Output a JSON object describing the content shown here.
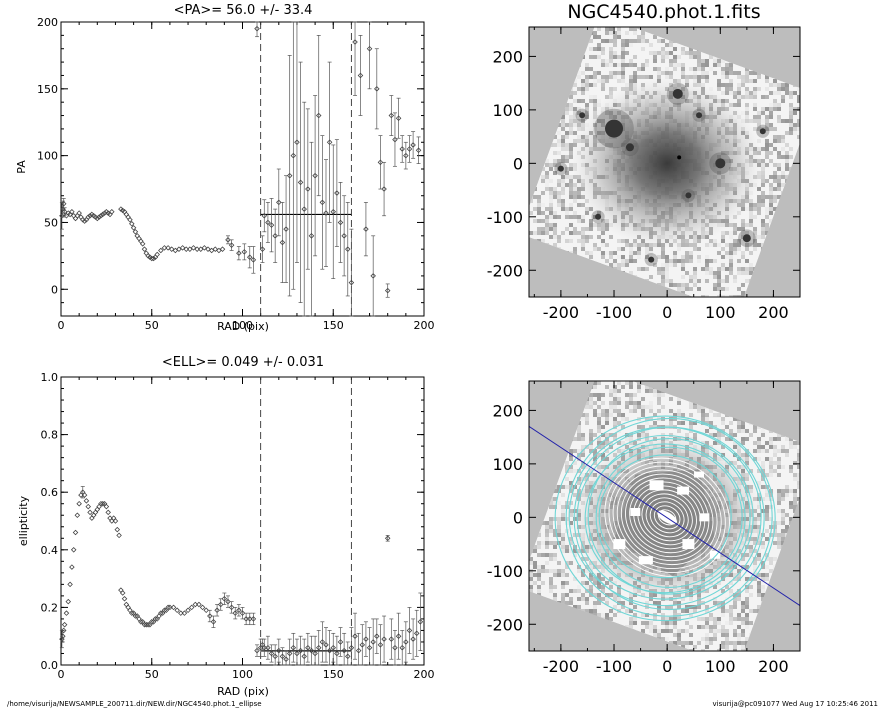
{
  "chart_data": [
    {
      "type": "scatter",
      "title": "<PA>=  56.0 +/-  33.4",
      "xlabel": "RAD (pix)",
      "ylabel": "PA",
      "xlim": [
        0,
        200
      ],
      "ylim": [
        -20,
        200
      ],
      "xticks": [
        "0",
        "50",
        "100",
        "150",
        "200"
      ],
      "yticks": [
        "0",
        "50",
        "100",
        "150",
        "200"
      ],
      "vlines": [
        110,
        160
      ],
      "mean_line": {
        "x": [
          110,
          160
        ],
        "y": 56.0
      },
      "points": [
        {
          "x": 0.5,
          "y": 55,
          "e": 10
        },
        {
          "x": 1,
          "y": 60,
          "e": 6
        },
        {
          "x": 1.5,
          "y": 64,
          "e": 4
        },
        {
          "x": 2,
          "y": 58,
          "e": 3
        },
        {
          "x": 3,
          "y": 55
        },
        {
          "x": 4,
          "y": 57
        },
        {
          "x": 5,
          "y": 56
        },
        {
          "x": 6,
          "y": 58
        },
        {
          "x": 7,
          "y": 55
        },
        {
          "x": 8,
          "y": 53
        },
        {
          "x": 9,
          "y": 55
        },
        {
          "x": 10,
          "y": 57
        },
        {
          "x": 11,
          "y": 54
        },
        {
          "x": 12,
          "y": 52
        },
        {
          "x": 13,
          "y": 51
        },
        {
          "x": 14,
          "y": 52
        },
        {
          "x": 15,
          "y": 54
        },
        {
          "x": 16,
          "y": 55
        },
        {
          "x": 17,
          "y": 56
        },
        {
          "x": 18,
          "y": 55
        },
        {
          "x": 19,
          "y": 54
        },
        {
          "x": 20,
          "y": 53
        },
        {
          "x": 21,
          "y": 54
        },
        {
          "x": 22,
          "y": 55
        },
        {
          "x": 23,
          "y": 56
        },
        {
          "x": 24,
          "y": 57
        },
        {
          "x": 25,
          "y": 58
        },
        {
          "x": 26,
          "y": 57
        },
        {
          "x": 27,
          "y": 56
        },
        {
          "x": 28,
          "y": 58
        },
        {
          "x": 33,
          "y": 60
        },
        {
          "x": 34,
          "y": 59
        },
        {
          "x": 35,
          "y": 58
        },
        {
          "x": 36,
          "y": 56
        },
        {
          "x": 37,
          "y": 54
        },
        {
          "x": 38,
          "y": 52
        },
        {
          "x": 39,
          "y": 49
        },
        {
          "x": 40,
          "y": 46
        },
        {
          "x": 41,
          "y": 43
        },
        {
          "x": 42,
          "y": 40
        },
        {
          "x": 43,
          "y": 38
        },
        {
          "x": 44,
          "y": 36
        },
        {
          "x": 45,
          "y": 34
        },
        {
          "x": 46,
          "y": 30
        },
        {
          "x": 47,
          "y": 27
        },
        {
          "x": 48,
          "y": 25
        },
        {
          "x": 49,
          "y": 24
        },
        {
          "x": 50,
          "y": 23
        },
        {
          "x": 51,
          "y": 23
        },
        {
          "x": 52,
          "y": 24
        },
        {
          "x": 53,
          "y": 26
        },
        {
          "x": 55,
          "y": 29
        },
        {
          "x": 57,
          "y": 31
        },
        {
          "x": 59,
          "y": 31
        },
        {
          "x": 61,
          "y": 30
        },
        {
          "x": 63,
          "y": 29
        },
        {
          "x": 65,
          "y": 30
        },
        {
          "x": 67,
          "y": 31
        },
        {
          "x": 69,
          "y": 30
        },
        {
          "x": 71,
          "y": 30
        },
        {
          "x": 73,
          "y": 31
        },
        {
          "x": 75,
          "y": 30
        },
        {
          "x": 77,
          "y": 30
        },
        {
          "x": 79,
          "y": 31
        },
        {
          "x": 81,
          "y": 30
        },
        {
          "x": 83,
          "y": 29
        },
        {
          "x": 85,
          "y": 30
        },
        {
          "x": 87,
          "y": 29
        },
        {
          "x": 89,
          "y": 30
        },
        {
          "x": 92,
          "y": 37,
          "e": 3
        },
        {
          "x": 94,
          "y": 33,
          "e": 4
        },
        {
          "x": 98,
          "y": 27,
          "e": 5
        },
        {
          "x": 101,
          "y": 28,
          "e": 6
        },
        {
          "x": 104,
          "y": 24,
          "e": 8
        },
        {
          "x": 106,
          "y": 22,
          "e": 10
        },
        {
          "x": 108,
          "y": 195,
          "e": 6
        },
        {
          "x": 111,
          "y": 30,
          "e": 10
        },
        {
          "x": 112,
          "y": 55,
          "e": 12
        },
        {
          "x": 114,
          "y": 50,
          "e": 15
        },
        {
          "x": 116,
          "y": 48,
          "e": 20
        },
        {
          "x": 118,
          "y": 40,
          "e": 20
        },
        {
          "x": 120,
          "y": 65,
          "e": 25
        },
        {
          "x": 122,
          "y": 35,
          "e": 30
        },
        {
          "x": 124,
          "y": 45,
          "e": 40
        },
        {
          "x": 126,
          "y": 85,
          "e": 90
        },
        {
          "x": 128,
          "y": 100,
          "e": 100
        },
        {
          "x": 130,
          "y": 110,
          "e": 90
        },
        {
          "x": 132,
          "y": 80,
          "e": 90
        },
        {
          "x": 134,
          "y": 60,
          "e": 80
        },
        {
          "x": 136,
          "y": 75,
          "e": 60
        },
        {
          "x": 138,
          "y": 40,
          "e": 70
        },
        {
          "x": 140,
          "y": 85,
          "e": 60
        },
        {
          "x": 142,
          "y": 130,
          "e": 60
        },
        {
          "x": 144,
          "y": 65,
          "e": 50
        },
        {
          "x": 146,
          "y": 57,
          "e": 40
        },
        {
          "x": 148,
          "y": 110,
          "e": 60
        },
        {
          "x": 150,
          "y": 58,
          "e": 50
        },
        {
          "x": 152,
          "y": 72,
          "e": 40
        },
        {
          "x": 154,
          "y": 50,
          "e": 30
        },
        {
          "x": 156,
          "y": 40,
          "e": 30
        },
        {
          "x": 158,
          "y": 30,
          "e": 35
        },
        {
          "x": 160,
          "y": 5,
          "e": 40
        },
        {
          "x": 162,
          "y": 185,
          "e": 40
        },
        {
          "x": 165,
          "y": 160,
          "e": 30
        },
        {
          "x": 168,
          "y": 45,
          "e": 20
        },
        {
          "x": 170,
          "y": 180,
          "e": 30
        },
        {
          "x": 172,
          "y": 10,
          "e": 30
        },
        {
          "x": 174,
          "y": 150,
          "e": 30
        },
        {
          "x": 176,
          "y": 95,
          "e": 20
        },
        {
          "x": 178,
          "y": 75,
          "e": 20
        },
        {
          "x": 180,
          "y": -1,
          "e": 5
        },
        {
          "x": 182,
          "y": 130,
          "e": 15
        },
        {
          "x": 184,
          "y": 112,
          "e": 20
        },
        {
          "x": 186,
          "y": 128,
          "e": 15
        },
        {
          "x": 188,
          "y": 105,
          "e": 10
        },
        {
          "x": 190,
          "y": 100,
          "e": 10
        },
        {
          "x": 192,
          "y": 105,
          "e": 10
        },
        {
          "x": 194,
          "y": 108,
          "e": 10
        },
        {
          "x": 197,
          "y": 104,
          "e": 10
        }
      ]
    },
    {
      "type": "scatter",
      "title": "<ELL>= 0.049 +/-  0.031",
      "xlabel": "RAD (pix)",
      "ylabel": "ellipticity",
      "xlim": [
        0,
        200
      ],
      "ylim": [
        0,
        1.0
      ],
      "xticks": [
        "0",
        "50",
        "100",
        "150",
        "200"
      ],
      "yticks": [
        "0.0",
        "0.2",
        "0.4",
        "0.6",
        "0.8",
        "1.0"
      ],
      "vlines": [
        110,
        160
      ],
      "mean_line": {
        "x": [
          110,
          160
        ],
        "y": 0.049
      },
      "points": [
        {
          "x": 0.5,
          "y": 0.09,
          "e": 0.03
        },
        {
          "x": 1,
          "y": 0.1,
          "e": 0.02
        },
        {
          "x": 1.5,
          "y": 0.12
        },
        {
          "x": 2,
          "y": 0.14
        },
        {
          "x": 3,
          "y": 0.18
        },
        {
          "x": 4,
          "y": 0.22
        },
        {
          "x": 5,
          "y": 0.28
        },
        {
          "x": 6,
          "y": 0.34
        },
        {
          "x": 7,
          "y": 0.4
        },
        {
          "x": 8,
          "y": 0.46
        },
        {
          "x": 9,
          "y": 0.52
        },
        {
          "x": 10,
          "y": 0.56
        },
        {
          "x": 11,
          "y": 0.59
        },
        {
          "x": 12,
          "y": 0.6,
          "e": 0.02
        },
        {
          "x": 13,
          "y": 0.59
        },
        {
          "x": 14,
          "y": 0.57
        },
        {
          "x": 15,
          "y": 0.55
        },
        {
          "x": 16,
          "y": 0.53
        },
        {
          "x": 17,
          "y": 0.51
        },
        {
          "x": 18,
          "y": 0.52
        },
        {
          "x": 19,
          "y": 0.53
        },
        {
          "x": 20,
          "y": 0.54
        },
        {
          "x": 21,
          "y": 0.55
        },
        {
          "x": 22,
          "y": 0.56
        },
        {
          "x": 23,
          "y": 0.56
        },
        {
          "x": 24,
          "y": 0.56
        },
        {
          "x": 25,
          "y": 0.55
        },
        {
          "x": 26,
          "y": 0.53
        },
        {
          "x": 27,
          "y": 0.51
        },
        {
          "x": 28,
          "y": 0.5
        },
        {
          "x": 29,
          "y": 0.51
        },
        {
          "x": 30,
          "y": 0.5
        },
        {
          "x": 31,
          "y": 0.47
        },
        {
          "x": 32,
          "y": 0.45
        },
        {
          "x": 33,
          "y": 0.26
        },
        {
          "x": 34,
          "y": 0.25
        },
        {
          "x": 35,
          "y": 0.23
        },
        {
          "x": 36,
          "y": 0.21
        },
        {
          "x": 37,
          "y": 0.2
        },
        {
          "x": 38,
          "y": 0.19
        },
        {
          "x": 39,
          "y": 0.18
        },
        {
          "x": 40,
          "y": 0.18
        },
        {
          "x": 41,
          "y": 0.17
        },
        {
          "x": 42,
          "y": 0.17
        },
        {
          "x": 43,
          "y": 0.16
        },
        {
          "x": 44,
          "y": 0.15
        },
        {
          "x": 45,
          "y": 0.15
        },
        {
          "x": 46,
          "y": 0.14
        },
        {
          "x": 47,
          "y": 0.14
        },
        {
          "x": 48,
          "y": 0.14
        },
        {
          "x": 49,
          "y": 0.14
        },
        {
          "x": 50,
          "y": 0.15
        },
        {
          "x": 51,
          "y": 0.15
        },
        {
          "x": 52,
          "y": 0.16
        },
        {
          "x": 53,
          "y": 0.16
        },
        {
          "x": 54,
          "y": 0.17
        },
        {
          "x": 55,
          "y": 0.18
        },
        {
          "x": 56,
          "y": 0.18
        },
        {
          "x": 57,
          "y": 0.19
        },
        {
          "x": 58,
          "y": 0.19
        },
        {
          "x": 59,
          "y": 0.2
        },
        {
          "x": 60,
          "y": 0.2
        },
        {
          "x": 62,
          "y": 0.2
        },
        {
          "x": 64,
          "y": 0.19
        },
        {
          "x": 66,
          "y": 0.18
        },
        {
          "x": 68,
          "y": 0.18
        },
        {
          "x": 70,
          "y": 0.19
        },
        {
          "x": 72,
          "y": 0.2
        },
        {
          "x": 74,
          "y": 0.21
        },
        {
          "x": 76,
          "y": 0.21
        },
        {
          "x": 78,
          "y": 0.2
        },
        {
          "x": 80,
          "y": 0.19
        },
        {
          "x": 82,
          "y": 0.17,
          "e": 0.02
        },
        {
          "x": 84,
          "y": 0.15,
          "e": 0.02
        },
        {
          "x": 86,
          "y": 0.19,
          "e": 0.02
        },
        {
          "x": 88,
          "y": 0.21,
          "e": 0.02
        },
        {
          "x": 90,
          "y": 0.23,
          "e": 0.02
        },
        {
          "x": 92,
          "y": 0.22,
          "e": 0.02
        },
        {
          "x": 94,
          "y": 0.2,
          "e": 0.02
        },
        {
          "x": 96,
          "y": 0.18,
          "e": 0.02
        },
        {
          "x": 98,
          "y": 0.19,
          "e": 0.02
        },
        {
          "x": 100,
          "y": 0.18,
          "e": 0.02
        },
        {
          "x": 102,
          "y": 0.16,
          "e": 0.02
        },
        {
          "x": 104,
          "y": 0.16,
          "e": 0.02
        },
        {
          "x": 106,
          "y": 0.16,
          "e": 0.02
        },
        {
          "x": 108,
          "y": 0.05,
          "e": 0.02
        },
        {
          "x": 110,
          "y": 0.06,
          "e": 0.03
        },
        {
          "x": 111,
          "y": 0.07,
          "e": 0.02
        },
        {
          "x": 112,
          "y": 0.06,
          "e": 0.03
        },
        {
          "x": 114,
          "y": 0.06,
          "e": 0.04
        },
        {
          "x": 116,
          "y": 0.04,
          "e": 0.03
        },
        {
          "x": 118,
          "y": 0.03,
          "e": 0.04
        },
        {
          "x": 120,
          "y": 0.05,
          "e": 0.04
        },
        {
          "x": 122,
          "y": 0.03,
          "e": 0.03
        },
        {
          "x": 124,
          "y": 0.02,
          "e": 0.03
        },
        {
          "x": 126,
          "y": 0.04,
          "e": 0.05
        },
        {
          "x": 128,
          "y": 0.06,
          "e": 0.05
        },
        {
          "x": 130,
          "y": 0.04,
          "e": 0.05
        },
        {
          "x": 132,
          "y": 0.05,
          "e": 0.05
        },
        {
          "x": 134,
          "y": 0.03,
          "e": 0.06
        },
        {
          "x": 136,
          "y": 0.06,
          "e": 0.05
        },
        {
          "x": 138,
          "y": 0.05,
          "e": 0.05
        },
        {
          "x": 140,
          "y": 0.04,
          "e": 0.06
        },
        {
          "x": 142,
          "y": 0.06,
          "e": 0.06
        },
        {
          "x": 144,
          "y": 0.08,
          "e": 0.07
        },
        {
          "x": 146,
          "y": 0.07,
          "e": 0.06
        },
        {
          "x": 148,
          "y": 0.05,
          "e": 0.07
        },
        {
          "x": 150,
          "y": 0.06,
          "e": 0.05
        },
        {
          "x": 152,
          "y": 0.04,
          "e": 0.06
        },
        {
          "x": 154,
          "y": 0.08,
          "e": 0.05
        },
        {
          "x": 156,
          "y": 0.05,
          "e": 0.06
        },
        {
          "x": 158,
          "y": 0.03,
          "e": 0.05
        },
        {
          "x": 160,
          "y": 0.06,
          "e": 0.07
        },
        {
          "x": 162,
          "y": 0.1,
          "e": 0.08
        },
        {
          "x": 164,
          "y": 0.05,
          "e": 0.06
        },
        {
          "x": 166,
          "y": 0.07,
          "e": 0.07
        },
        {
          "x": 168,
          "y": 0.09,
          "e": 0.06
        },
        {
          "x": 170,
          "y": 0.06,
          "e": 0.07
        },
        {
          "x": 172,
          "y": 0.08,
          "e": 0.08
        },
        {
          "x": 174,
          "y": 0.1,
          "e": 0.06
        },
        {
          "x": 176,
          "y": 0.07,
          "e": 0.07
        },
        {
          "x": 178,
          "y": 0.09,
          "e": 0.08
        },
        {
          "x": 180,
          "y": 0.44,
          "e": 0.01
        },
        {
          "x": 182,
          "y": 0.09,
          "e": 0.07
        },
        {
          "x": 184,
          "y": 0.06,
          "e": 0.06
        },
        {
          "x": 186,
          "y": 0.1,
          "e": 0.08
        },
        {
          "x": 188,
          "y": 0.06,
          "e": 0.06
        },
        {
          "x": 190,
          "y": 0.08,
          "e": 0.07
        },
        {
          "x": 192,
          "y": 0.12,
          "e": 0.08
        },
        {
          "x": 194,
          "y": 0.09,
          "e": 0.07
        },
        {
          "x": 196,
          "y": 0.11,
          "e": 0.08
        },
        {
          "x": 198,
          "y": 0.15,
          "e": 0.1
        }
      ]
    },
    {
      "type": "heatmap",
      "title": "NGC4540.phot.1.fits",
      "xlim": [
        -260,
        250
      ],
      "ylim": [
        -250,
        255
      ],
      "xticks": [
        "-200",
        "-100",
        "0",
        "100",
        "200"
      ],
      "yticks": [
        "200",
        "100",
        "0",
        "-100",
        "-200"
      ],
      "background_color": "#bdbdbd"
    },
    {
      "type": "heatmap",
      "title": "",
      "xlim": [
        -260,
        250
      ],
      "ylim": [
        -250,
        255
      ],
      "xticks": [
        "-200",
        "-100",
        "0",
        "100",
        "200"
      ],
      "yticks": [
        "200",
        "100",
        "0",
        "-100",
        "-200"
      ],
      "contour_color": "#6fd6d6",
      "pa_line_color": "#2222aa",
      "background_color": "#bdbdbd"
    }
  ],
  "footer": {
    "path": "/home/visurija/NEWSAMPLE_200711.dir/NEW.dir/NGC4540.phot.1_ellipse",
    "stamp": "visurija@pc091077  Wed Aug 17 10:25:46 2011"
  }
}
